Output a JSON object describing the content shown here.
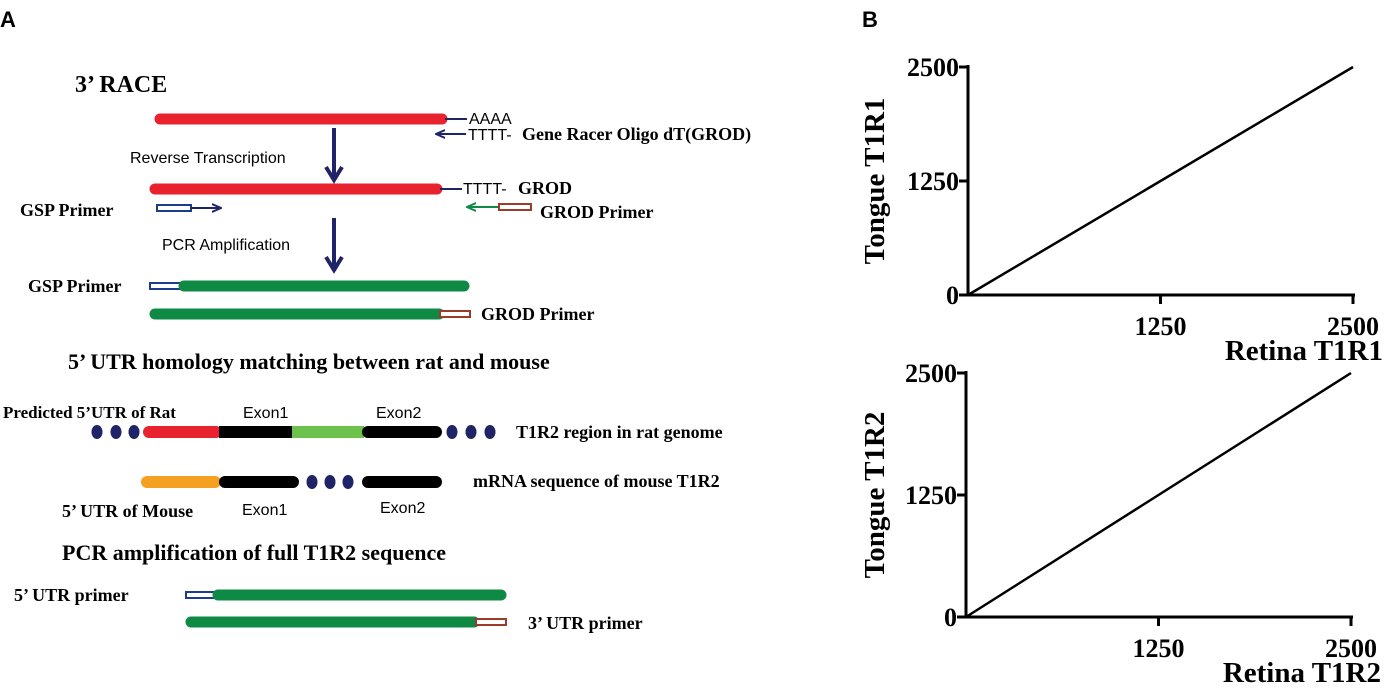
{
  "panel_a": {
    "label": "A",
    "race": {
      "title": "3’ RACE",
      "poly_a": "AAAA",
      "oligo_dt": "TTTT-",
      "grod_full": "Gene Racer Oligo dT(GROD)",
      "reverse_transcription": "Reverse Transcription",
      "oligo_dt_2": "TTTT-",
      "grod": "GROD",
      "gsp_primer": "GSP Primer",
      "grod_primer": "GROD Primer",
      "pcr_amplification": "PCR Amplification",
      "gsp_primer_2": "GSP Primer",
      "grod_primer_2": "GROD Primer"
    },
    "utr": {
      "title": "5’ UTR homology matching between rat and mouse",
      "predicted_rat": "Predicted 5’UTR of Rat",
      "exon1_top": "Exon1",
      "exon2_top": "Exon2",
      "rat_region": "T1R2 region in rat genome",
      "mouse_mrna": "mRNA sequence of mouse T1R2",
      "utr_mouse": "5’ UTR of Mouse",
      "exon1_bottom": "Exon1",
      "exon2_bottom": "Exon2"
    },
    "pcr_full": {
      "title": "PCR amplification of full T1R2 sequence",
      "utr5_primer": "5’ UTR primer",
      "utr3_primer": "3’ UTR primer"
    },
    "colors": {
      "red": "#e8232e",
      "green": "#0f8a44",
      "light_green": "#6cc24a",
      "black": "#000000",
      "orange": "#f4a020",
      "navy": "#1e2466",
      "primer_blue": "#1e3c8c",
      "primer_brown": "#9b3b2a"
    }
  },
  "panel_b": {
    "label": "B"
  },
  "chart_data": [
    {
      "type": "line",
      "x": [
        0,
        2500
      ],
      "y": [
        0,
        2500
      ],
      "xlabel": "Retina T1R1",
      "ylabel": "Tongue T1R1",
      "xlim": [
        0,
        2500
      ],
      "ylim": [
        0,
        2500
      ],
      "xticks": [
        "1250",
        "2500"
      ],
      "yticks": [
        "0",
        "1250",
        "2500"
      ],
      "grid": false
    },
    {
      "type": "line",
      "x": [
        0,
        2500
      ],
      "y": [
        0,
        2500
      ],
      "xlabel": "Retina T1R2",
      "ylabel": "Tongue T1R2",
      "xlim": [
        0,
        2500
      ],
      "ylim": [
        0,
        2500
      ],
      "xticks": [
        "1250",
        "2500"
      ],
      "yticks": [
        "0",
        "1250",
        "2500"
      ],
      "grid": false
    }
  ]
}
